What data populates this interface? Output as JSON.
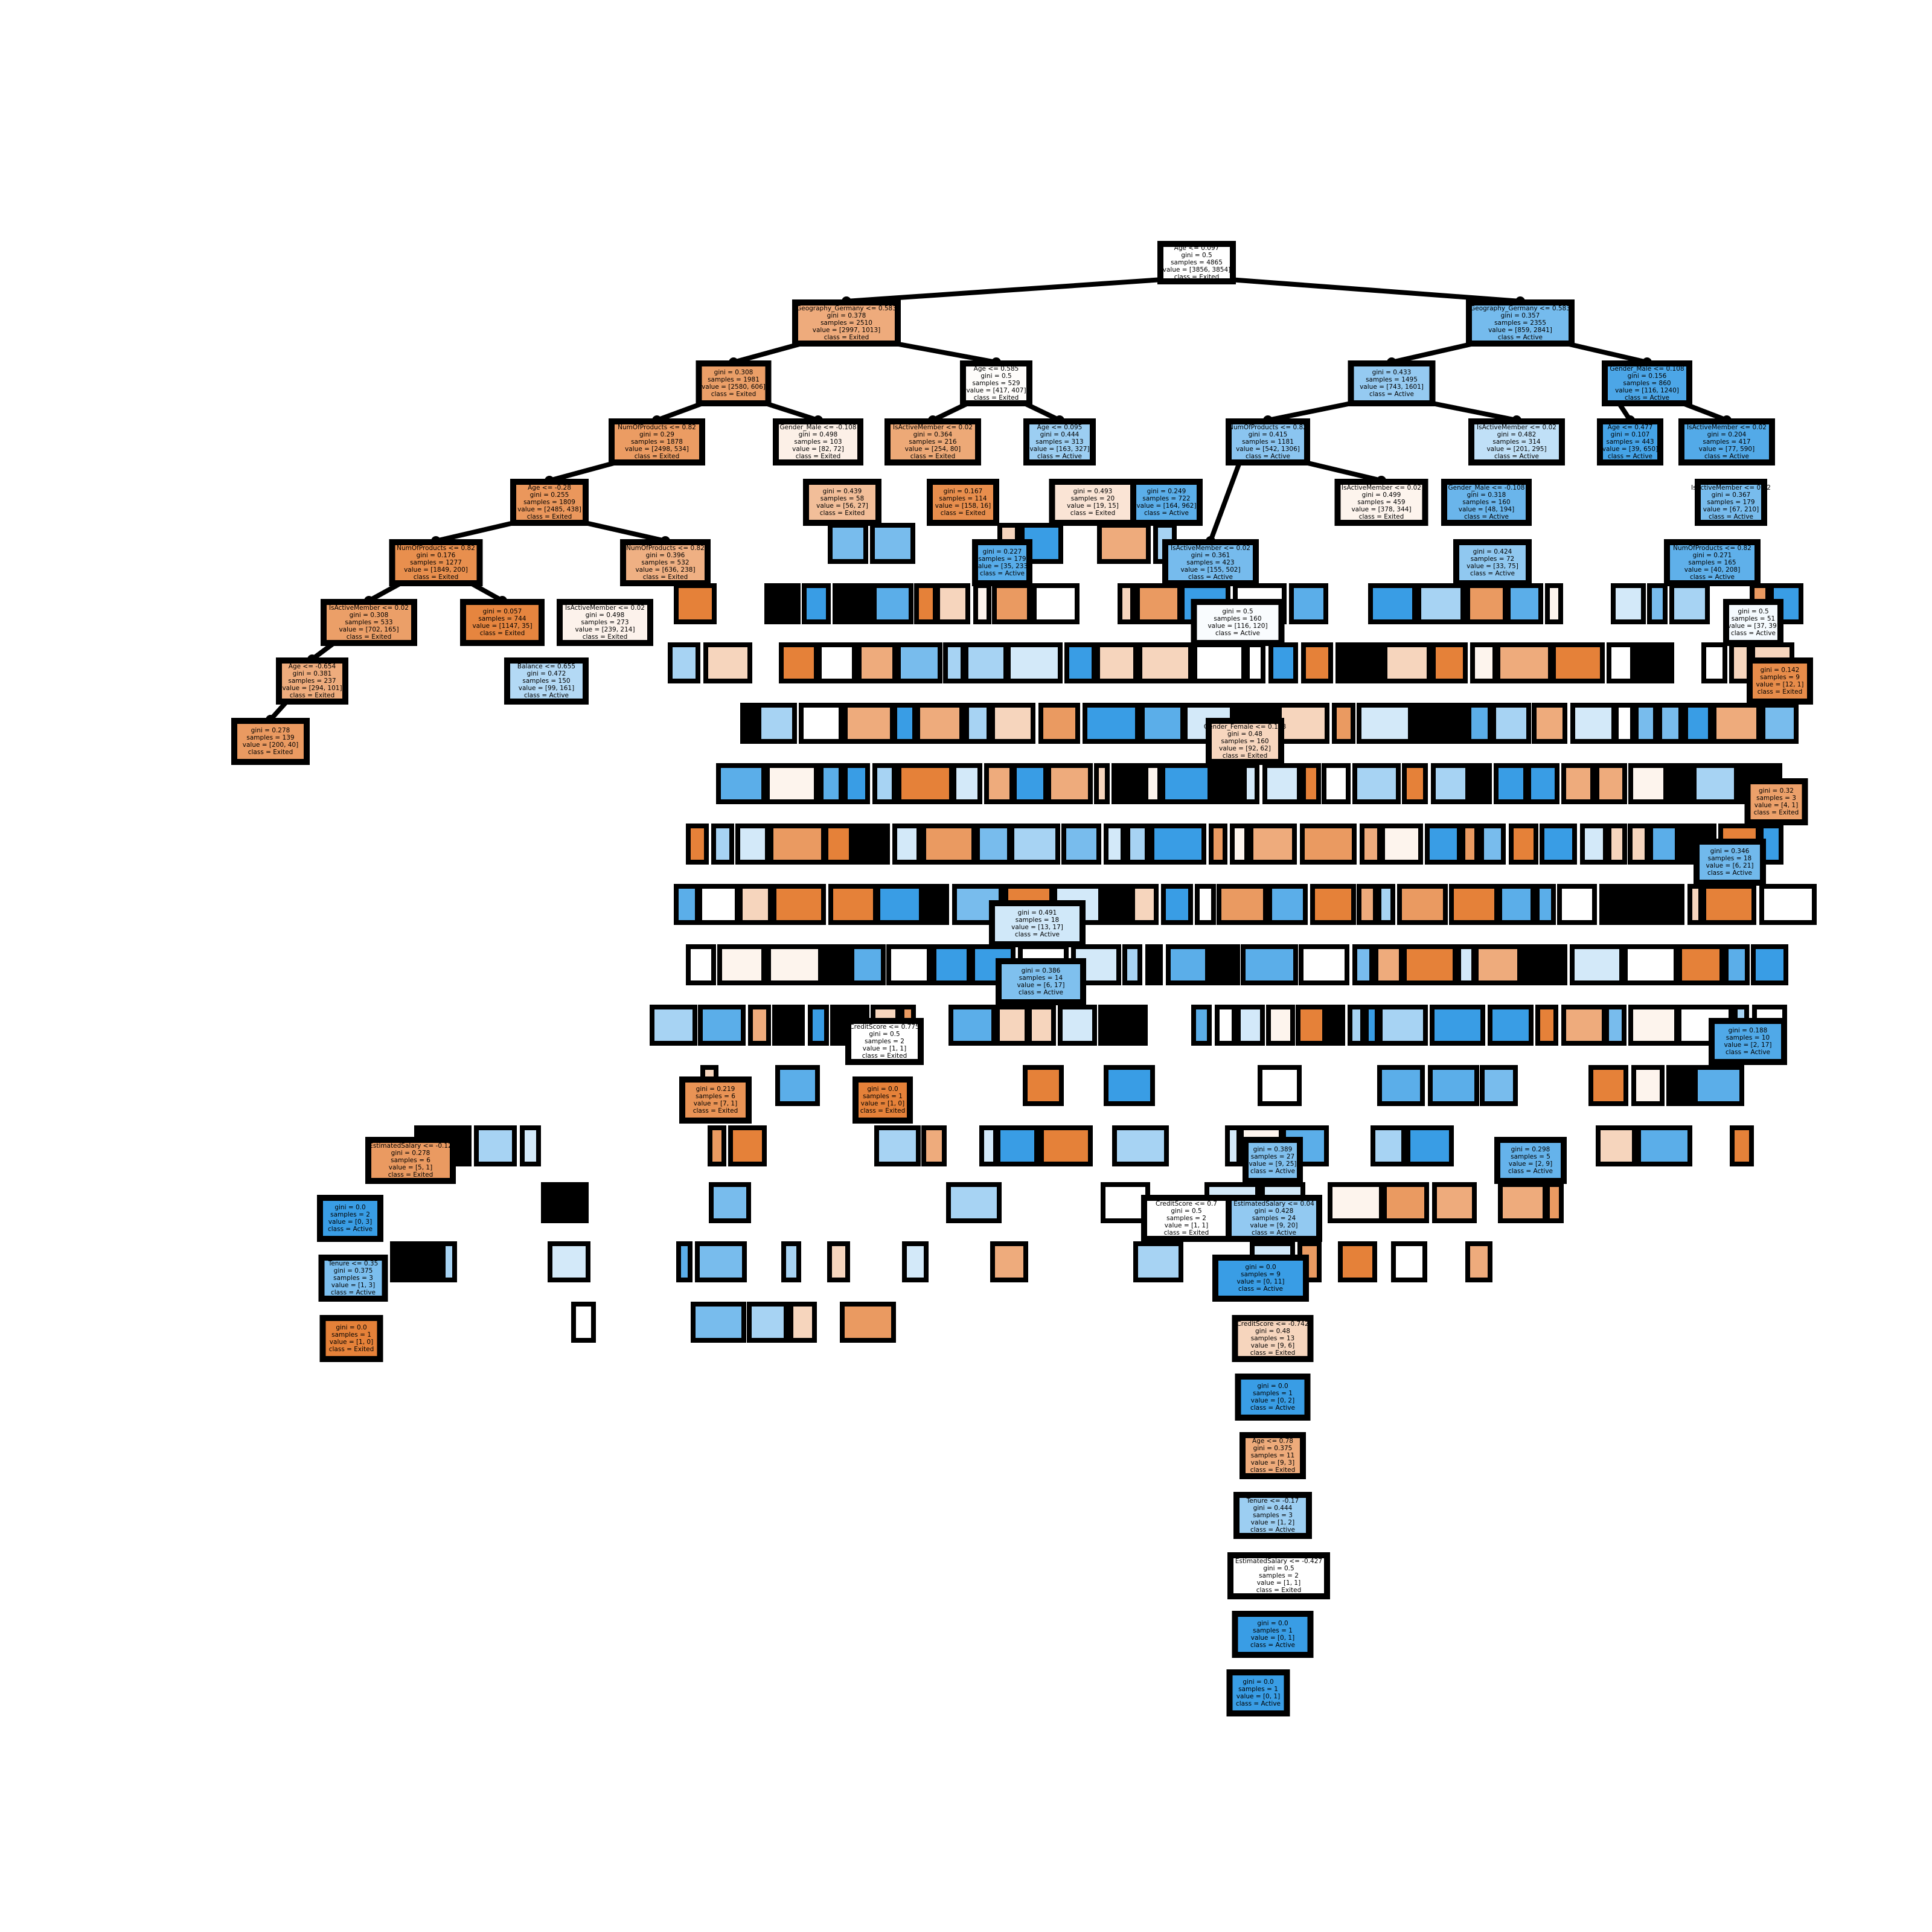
{
  "colors": {
    "exited": "#e58139",
    "active": "#399de5",
    "neutral": "#ffffff",
    "border": "#000000",
    "edge": "#000000"
  },
  "legible_nodes": [
    {
      "id": "root",
      "lines": [
        "Age <= 0.097",
        "gini = 0.5",
        "samples = 4865",
        "value = [3856, 3854]",
        "class = Exited"
      ],
      "fill": "#ffffff"
    },
    {
      "id": "n_l",
      "lines": [
        "Geography_Germany <= 0.583",
        "gini = 0.378",
        "samples = 2510",
        "value = [2997, 1013]",
        "class = Exited"
      ],
      "fill": "#eeab7c"
    },
    {
      "id": "n_r",
      "lines": [
        "Geography_Germany <= 0.583",
        "gini = 0.357",
        "samples = 2355",
        "value = [859, 2841]",
        "class = Active"
      ],
      "fill": "#75bbed"
    },
    {
      "id": "n_ll",
      "lines": [
        "gini = 0.308",
        "samples = 1981",
        "value = [2580, 606]",
        "class = Exited"
      ],
      "fill": "#eb9f68"
    },
    {
      "id": "n_lr",
      "lines": [
        "Age <= 0.585",
        "gini = 0.5",
        "samples = 529",
        "value = [417, 407]",
        "class = Exited"
      ],
      "fill": "#fefcfa"
    },
    {
      "id": "n_rl",
      "lines": [
        "gini = 0.433",
        "samples = 1495",
        "value = [743, 1601]",
        "class = Active"
      ],
      "fill": "#95caf1"
    },
    {
      "id": "n_rr",
      "lines": [
        "Gender_Male <= 0.108",
        "gini = 0.156",
        "samples = 860",
        "value = [116, 1240]",
        "class = Active"
      ],
      "fill": "#4ca6e7"
    },
    {
      "id": "n_lll",
      "lines": [
        "NumOfProducts <= 0.82",
        "gini = 0.29",
        "samples = 1878",
        "value = [2498, 534]",
        "class = Exited"
      ],
      "fill": "#eb9c63"
    },
    {
      "id": "n_llr",
      "lines": [
        "Gender_Male <= -0.108",
        "gini = 0.498",
        "samples = 103",
        "value = [82, 72]",
        "class = Exited"
      ],
      "fill": "#fcf0e7"
    },
    {
      "id": "n_lrl",
      "lines": [
        "IsActiveMember <= 0.02",
        "gini = 0.364",
        "samples = 216",
        "value = [254, 80]",
        "class = Exited"
      ],
      "fill": "#eda977"
    },
    {
      "id": "n_lrr",
      "lines": [
        "Age <= 0.095",
        "gini = 0.444",
        "samples = 313",
        "value = [163, 327]",
        "class = Active"
      ],
      "fill": "#9ccef2"
    },
    {
      "id": "n_rll",
      "lines": [
        "NumOfProducts <= 0.82",
        "gini = 0.415",
        "samples = 1181",
        "value = [542, 1306]",
        "class = Active"
      ],
      "fill": "#8bc5f0"
    },
    {
      "id": "n_rlr",
      "lines": [
        "IsActiveMember <= 0.02",
        "gini = 0.482",
        "samples = 314",
        "value = [201, 295]",
        "class = Active"
      ],
      "fill": "#c0e0f7"
    },
    {
      "id": "n_rrl",
      "lines": [
        "Age <= 0.477",
        "gini = 0.107",
        "samples = 443",
        "value = [39, 650]",
        "class = Active"
      ],
      "fill": "#45a3e7"
    },
    {
      "id": "n_rrr",
      "lines": [
        "IsActiveMember <= 0.02",
        "gini = 0.204",
        "samples = 417",
        "value = [77, 590]",
        "class = Active"
      ],
      "fill": "#53aae8"
    },
    {
      "id": "n4a",
      "lines": [
        "Age <= -0.28",
        "gini = 0.255",
        "samples = 1809",
        "value = [2485, 438]",
        "class = Exited"
      ],
      "fill": "#ea975c"
    },
    {
      "id": "n4b",
      "lines": [
        "gini = 0.439",
        "samples = 58",
        "value = [56, 27]",
        "class = Exited"
      ],
      "fill": "#f2be99"
    },
    {
      "id": "n4c",
      "lines": [
        "gini = 0.167",
        "samples = 114",
        "value = [158, 16]",
        "class = Exited"
      ],
      "fill": "#e88e4d"
    },
    {
      "id": "n4d",
      "lines": [
        "gini = 0.493",
        "samples = 20",
        "value = [19, 15]",
        "class = Exited"
      ],
      "fill": "#fae4d5"
    },
    {
      "id": "n4e",
      "lines": [
        "gini = 0.249",
        "samples = 722",
        "value = [164, 962]",
        "class = Active"
      ],
      "fill": "#5baee9"
    },
    {
      "id": "n4f",
      "lines": [
        "IsActiveMember <= 0.02",
        "gini = 0.499",
        "samples = 459",
        "value = [378, 344]",
        "class = Exited"
      ],
      "fill": "#fdf4ed"
    },
    {
      "id": "n4g",
      "lines": [
        "Gender_Male <= -0.108",
        "gini = 0.318",
        "samples = 160",
        "value = [48, 194]",
        "class = Active"
      ],
      "fill": "#6ab5eb"
    },
    {
      "id": "n4h",
      "lines": [
        "IsActiveMember <= 0.02",
        "gini = 0.367",
        "samples = 179",
        "value = [67, 210]",
        "class = Active"
      ],
      "fill": "#78bced"
    },
    {
      "id": "n5a",
      "lines": [
        "NumOfProducts <= 0.82",
        "gini = 0.176",
        "samples = 1277",
        "value = [1849, 200]",
        "class = Exited"
      ],
      "fill": "#e88f4e"
    },
    {
      "id": "n5b",
      "lines": [
        "NumOfProducts <= 0.82",
        "gini = 0.396",
        "samples = 532",
        "value = [636, 238]",
        "class = Exited"
      ],
      "fill": "#efb083"
    },
    {
      "id": "n5c",
      "lines": [
        "gini = 0.227",
        "samples = 179",
        "value = [35, 233]",
        "class = Active"
      ],
      "fill": "#57ace9"
    },
    {
      "id": "n5d",
      "lines": [
        "IsActiveMember <= 0.02",
        "gini = 0.361",
        "samples = 423",
        "value = [155, 502]",
        "class = Active"
      ],
      "fill": "#76bbed"
    },
    {
      "id": "n5e",
      "lines": [
        "gini = 0.424",
        "samples = 72",
        "value = [33, 75]",
        "class = Active"
      ],
      "fill": "#90c8f0"
    },
    {
      "id": "n5f",
      "lines": [
        "NumOfProducts <= 0.82",
        "gini = 0.271",
        "samples = 165",
        "value = [40, 208]",
        "class = Active"
      ],
      "fill": "#5fb0ea"
    },
    {
      "id": "n6a",
      "lines": [
        "IsActiveMember <= 0.02",
        "gini = 0.308",
        "samples = 533",
        "value = [702, 165]",
        "class = Exited"
      ],
      "fill": "#eb9f68"
    },
    {
      "id": "n6b",
      "lines": [
        "gini = 0.057",
        "samples = 744",
        "value = [1147, 35]",
        "class = Exited"
      ],
      "fill": "#e6853f"
    },
    {
      "id": "n6c",
      "lines": [
        "IsActiveMember <= 0.02",
        "gini = 0.498",
        "samples = 273",
        "value = [239, 214]",
        "class = Exited"
      ],
      "fill": "#fcf2eb"
    },
    {
      "id": "n6d",
      "lines": [
        "gini = 0.5",
        "samples = 160",
        "value = [116, 120]",
        "class = Active"
      ],
      "fill": "#f9fcfe"
    },
    {
      "id": "n6e",
      "lines": [
        "gini = 0.5",
        "samples = 51",
        "value = [37, 39]",
        "class = Active"
      ],
      "fill": "#f5fafe"
    },
    {
      "id": "n7a",
      "lines": [
        "Age <= -0.654",
        "gini = 0.381",
        "samples = 237",
        "value = [294, 101]",
        "class = Exited"
      ],
      "fill": "#eeac7d"
    },
    {
      "id": "n7b",
      "lines": [
        "Balance <= 0.655",
        "gini = 0.472",
        "samples = 150",
        "value = [99, 161]",
        "class = Active"
      ],
      "fill": "#b3d9f5"
    },
    {
      "id": "n7c",
      "lines": [
        "gini = 0.142",
        "samples = 9",
        "value = [12, 1]",
        "class = Exited"
      ],
      "fill": "#e78c4a"
    },
    {
      "id": "n8a",
      "lines": [
        "gini = 0.278",
        "samples = 139",
        "value = [200, 40]",
        "class = Exited"
      ],
      "fill": "#ea9a61"
    },
    {
      "id": "n8b",
      "lines": [
        "Gender_Female <= 0.108",
        "gini = 0.48",
        "samples = 160",
        "value = [92, 62]",
        "class = Exited"
      ],
      "fill": "#f7d6be"
    },
    {
      "id": "n9a",
      "lines": [
        "gini = 0.32",
        "samples = 3",
        "value = [4, 1]",
        "class = Exited"
      ],
      "fill": "#eca06a"
    },
    {
      "id": "n10a",
      "lines": [
        "gini = 0.346",
        "samples = 18",
        "value = [6, 21]",
        "class = Active"
      ],
      "fill": "#71b9ec"
    },
    {
      "id": "n11a",
      "lines": [
        "gini = 0.491",
        "samples = 18",
        "value = [13, 17]",
        "class = Active"
      ],
      "fill": "#d0e8f9"
    },
    {
      "id": "n12a",
      "lines": [
        "gini = 0.386",
        "samples = 14",
        "value = [6, 17]",
        "class = Active"
      ],
      "fill": "#7fc0ee"
    },
    {
      "id": "n13a",
      "lines": [
        "CreditScore <= 0.775",
        "gini = 0.5",
        "samples = 2",
        "value = [1, 1]",
        "class = Exited"
      ],
      "fill": "#ffffff"
    },
    {
      "id": "n13b",
      "lines": [
        "gini = 0.188",
        "samples = 10",
        "value = [2, 17]",
        "class = Active"
      ],
      "fill": "#50a9e8"
    },
    {
      "id": "n14a",
      "lines": [
        "gini = 0.219",
        "samples = 6",
        "value = [7, 1]",
        "class = Exited"
      ],
      "fill": "#e99355"
    },
    {
      "id": "n14b",
      "lines": [
        "gini = 0.0",
        "samples = 1",
        "value = [1, 0]",
        "class = Exited"
      ],
      "fill": "#e58139"
    },
    {
      "id": "n15a",
      "lines": [
        "EstimatedSalary <= -0.12",
        "gini = 0.278",
        "samples = 6",
        "value = [5, 1]",
        "class = Exited"
      ],
      "fill": "#ea9a61"
    },
    {
      "id": "n15b",
      "lines": [
        "gini = 0.389",
        "samples = 27",
        "value = [9, 25]",
        "class = Active"
      ],
      "fill": "#80c0ee"
    },
    {
      "id": "n15c",
      "lines": [
        "gini = 0.298",
        "samples = 5",
        "value = [2, 9]",
        "class = Active"
      ],
      "fill": "#65b3eb"
    },
    {
      "id": "n16a",
      "lines": [
        "gini = 0.0",
        "samples = 2",
        "value = [0, 3]",
        "class = Active"
      ],
      "fill": "#399de5"
    },
    {
      "id": "n16b",
      "lines": [
        "CreditScore <= 0.7",
        "gini = 0.5",
        "samples = 2",
        "value = [1, 1]",
        "class = Exited"
      ],
      "fill": "#ffffff"
    },
    {
      "id": "n16c",
      "lines": [
        "EstimatedSalary <= 0.04",
        "gini = 0.428",
        "samples = 24",
        "value = [9, 20]",
        "class = Active"
      ],
      "fill": "#92c9f1"
    },
    {
      "id": "n17a",
      "lines": [
        "Tenure <= 0.35",
        "gini = 0.375",
        "samples = 3",
        "value = [1, 3]",
        "class = Active"
      ],
      "fill": "#7bbeee"
    },
    {
      "id": "n17b",
      "lines": [
        "gini = 0.0",
        "samples = 9",
        "value = [0, 11]",
        "class = Active"
      ],
      "fill": "#399de5"
    },
    {
      "id": "n18a",
      "lines": [
        "gini = 0.0",
        "samples = 1",
        "value = [1, 0]",
        "class = Exited"
      ],
      "fill": "#e58139"
    },
    {
      "id": "n18b",
      "lines": [
        "CreditScore <= -0.742",
        "gini = 0.48",
        "samples = 13",
        "value = [9, 6]",
        "class = Exited"
      ],
      "fill": "#f6d5bd"
    },
    {
      "id": "n19",
      "lines": [
        "gini = 0.0",
        "samples = 1",
        "value = [0, 2]",
        "class = Active"
      ],
      "fill": "#399de5"
    },
    {
      "id": "n20",
      "lines": [
        "Age <= 0.78",
        "gini = 0.375",
        "samples = 11",
        "value = [9, 3]",
        "class = Exited"
      ],
      "fill": "#eeab7b"
    },
    {
      "id": "n21",
      "lines": [
        "Tenure <= -0.17",
        "gini = 0.444",
        "samples = 3",
        "value = [1, 2]",
        "class = Active"
      ],
      "fill": "#9ccef2"
    },
    {
      "id": "n22",
      "lines": [
        "EstimatedSalary <= -0.427",
        "gini = 0.5",
        "samples = 2",
        "value = [1, 1]",
        "class = Exited"
      ],
      "fill": "#ffffff"
    },
    {
      "id": "n23",
      "lines": [
        "gini = 0.0",
        "samples = 1",
        "value = [0, 1]",
        "class = Active"
      ],
      "fill": "#399de5"
    },
    {
      "id": "n24",
      "lines": [
        "gini = 0.0",
        "samples = 1",
        "value = [0, 1]",
        "class = Active"
      ],
      "fill": "#399de5"
    }
  ]
}
